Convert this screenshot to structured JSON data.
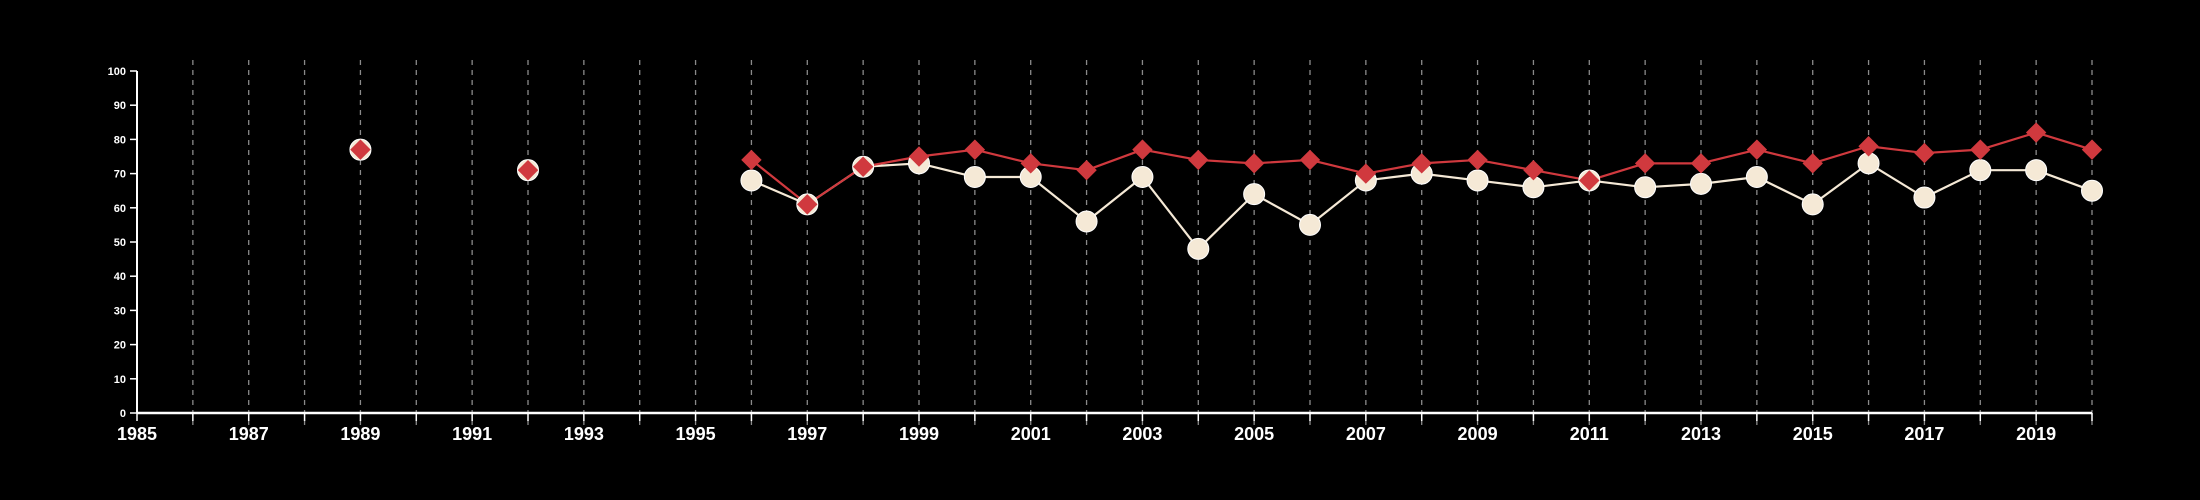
{
  "chart_data": {
    "type": "line",
    "title": "",
    "xlabel": "",
    "ylabel": "",
    "xlim": [
      1985,
      2020
    ],
    "ylim": [
      0,
      100
    ],
    "y_ticks": [
      "0",
      "10",
      "20",
      "30",
      "40",
      "50",
      "60",
      "70",
      "80",
      "90",
      "100"
    ],
    "x_ticks": [
      "1985",
      "1987",
      "1989",
      "1991",
      "1993",
      "1995",
      "1997",
      "1999",
      "2001",
      "2003",
      "2005",
      "2007",
      "2009",
      "2011",
      "2013",
      "2015",
      "2017",
      "2019"
    ],
    "grid": "vertical dashed lines at every year",
    "legend": "none",
    "series": [
      {
        "marker": "circle",
        "color": "#f5e9d6",
        "points": [
          {
            "x": 1989,
            "y": 77
          },
          {
            "x": 1992,
            "y": 71
          },
          {
            "x": 1996,
            "y": 68
          },
          {
            "x": 1997,
            "y": 61
          },
          {
            "x": 1998,
            "y": 72
          },
          {
            "x": 1999,
            "y": 73
          },
          {
            "x": 2000,
            "y": 69
          },
          {
            "x": 2001,
            "y": 69
          },
          {
            "x": 2002,
            "y": 56
          },
          {
            "x": 2003,
            "y": 69
          },
          {
            "x": 2004,
            "y": 48
          },
          {
            "x": 2005,
            "y": 64
          },
          {
            "x": 2006,
            "y": 55
          },
          {
            "x": 2007,
            "y": 68
          },
          {
            "x": 2008,
            "y": 70
          },
          {
            "x": 2009,
            "y": 68
          },
          {
            "x": 2010,
            "y": 66
          },
          {
            "x": 2011,
            "y": 68
          },
          {
            "x": 2012,
            "y": 66
          },
          {
            "x": 2013,
            "y": 67
          },
          {
            "x": 2014,
            "y": 69
          },
          {
            "x": 2015,
            "y": 61
          },
          {
            "x": 2016,
            "y": 73
          },
          {
            "x": 2017,
            "y": 63
          },
          {
            "x": 2018,
            "y": 71
          },
          {
            "x": 2019,
            "y": 71
          },
          {
            "x": 2020,
            "y": 65
          }
        ]
      },
      {
        "marker": "diamond",
        "color": "#d0393e",
        "points": [
          {
            "x": 1989,
            "y": 77
          },
          {
            "x": 1992,
            "y": 71
          },
          {
            "x": 1996,
            "y": 74
          },
          {
            "x": 1997,
            "y": 61
          },
          {
            "x": 1998,
            "y": 72
          },
          {
            "x": 1999,
            "y": 75
          },
          {
            "x": 2000,
            "y": 77
          },
          {
            "x": 2001,
            "y": 73
          },
          {
            "x": 2002,
            "y": 71
          },
          {
            "x": 2003,
            "y": 77
          },
          {
            "x": 2004,
            "y": 74
          },
          {
            "x": 2005,
            "y": 73
          },
          {
            "x": 2006,
            "y": 74
          },
          {
            "x": 2007,
            "y": 70
          },
          {
            "x": 2008,
            "y": 73
          },
          {
            "x": 2009,
            "y": 74
          },
          {
            "x": 2010,
            "y": 71
          },
          {
            "x": 2011,
            "y": 68
          },
          {
            "x": 2012,
            "y": 73
          },
          {
            "x": 2013,
            "y": 73
          },
          {
            "x": 2014,
            "y": 77
          },
          {
            "x": 2015,
            "y": 73
          },
          {
            "x": 2016,
            "y": 78
          },
          {
            "x": 2017,
            "y": 76
          },
          {
            "x": 2018,
            "y": 77
          },
          {
            "x": 2019,
            "y": 82
          },
          {
            "x": 2020,
            "y": 77
          }
        ]
      }
    ]
  }
}
